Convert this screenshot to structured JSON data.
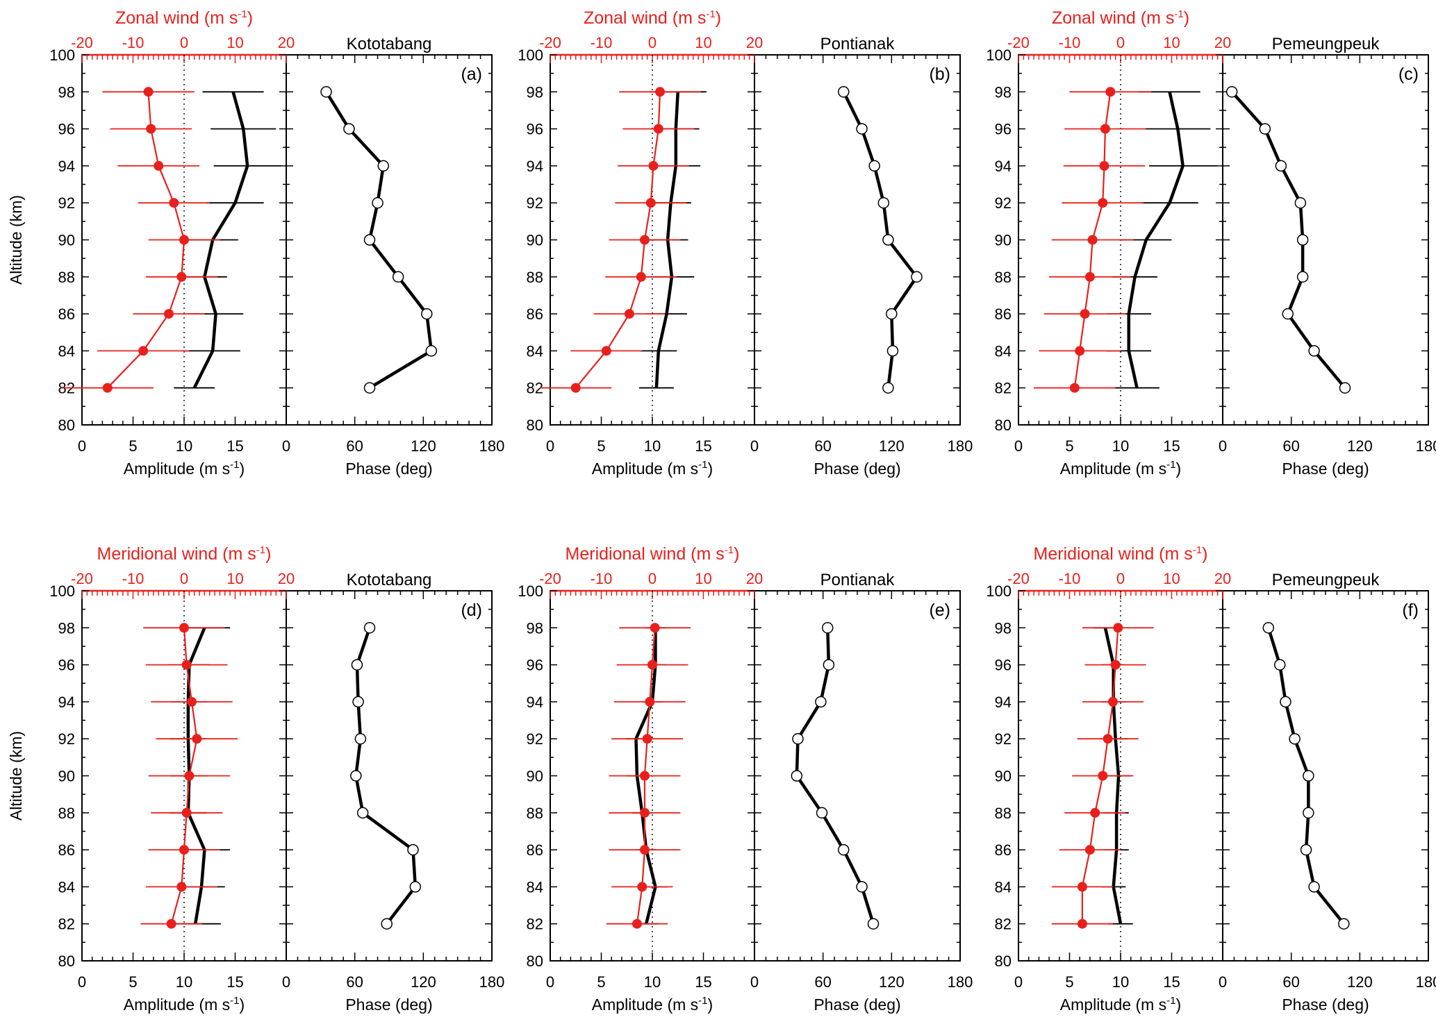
{
  "figure": {
    "y_axis_label": "Altitude (km)",
    "amplitude_axis_label": "Amplitude (m s",
    "phase_axis_label": "Phase (deg)",
    "zonal_axis_label": "Zonal wind (m s",
    "meridional_axis_label": "Meridional wind (m s",
    "unit_superscript": "-1",
    "unit_close": ")",
    "stations": [
      "Kototabang",
      "Pontianak",
      "Pemeungpeuk"
    ],
    "altitude_ticks": [
      "80",
      "82",
      "84",
      "86",
      "88",
      "90",
      "92",
      "94",
      "96",
      "98",
      "100"
    ],
    "amplitude_ticks": [
      "0",
      "5",
      "10",
      "15"
    ],
    "phase_ticks": [
      "0",
      "60",
      "120",
      "180"
    ],
    "wind_ticks": [
      "-20",
      "-10",
      "0",
      "10",
      "20"
    ],
    "colors": {
      "wind": "#e8201c",
      "amplitude": "#000000",
      "phase": "#000000"
    }
  },
  "chart_data": [
    {
      "type": "line",
      "panel": "a",
      "panel_label": "(a)",
      "component": "zonal",
      "station": "Kototabang",
      "altitude_km": [
        98,
        96,
        94,
        92,
        90,
        88,
        86,
        84,
        82
      ],
      "amplitude_ylim": [
        80,
        100
      ],
      "amplitude_xlim": [
        0,
        20
      ],
      "amplitude": [
        14.8,
        15.8,
        16.2,
        15.0,
        12.8,
        12.0,
        13.1,
        12.8,
        11.0
      ],
      "amplitude_err": [
        3.0,
        3.2,
        3.3,
        2.8,
        2.5,
        2.2,
        2.7,
        2.7,
        2.0
      ],
      "phase_xlim": [
        0,
        180
      ],
      "phase": [
        35,
        55,
        85,
        80,
        73,
        98,
        123,
        127,
        73
      ],
      "wind_xlim": [
        -20,
        20
      ],
      "mean_wind": [
        -7,
        -6.5,
        -5,
        -2,
        0,
        -0.5,
        -3,
        -8,
        -15
      ],
      "wind_err": [
        9,
        8,
        8,
        7,
        7,
        7,
        7,
        9,
        9
      ]
    },
    {
      "type": "line",
      "panel": "b",
      "panel_label": "(b)",
      "component": "zonal",
      "station": "Pontianak",
      "altitude_km": [
        98,
        96,
        94,
        92,
        90,
        88,
        86,
        84,
        82
      ],
      "amplitude_ylim": [
        80,
        100
      ],
      "amplitude_xlim": [
        0,
        20
      ],
      "amplitude": [
        12.5,
        12.3,
        12.3,
        11.8,
        11.5,
        11.9,
        11.4,
        10.6,
        10.4
      ],
      "amplitude_err": [
        2.8,
        2.3,
        2.4,
        2.0,
        2.0,
        2.2,
        2.0,
        1.8,
        1.7
      ],
      "phase_xlim": [
        0,
        180
      ],
      "phase": [
        78,
        94,
        105,
        113,
        117,
        142,
        120,
        121,
        117
      ],
      "wind_xlim": [
        -20,
        20
      ],
      "mean_wind": [
        1.5,
        1.2,
        0.2,
        -0.3,
        -1.5,
        -2.2,
        -4.5,
        -9,
        -15
      ],
      "wind_err": [
        8,
        7,
        7,
        7,
        7,
        7,
        7,
        7,
        7
      ]
    },
    {
      "type": "line",
      "panel": "c",
      "panel_label": "(c)",
      "component": "zonal",
      "station": "Pemeungpeuk",
      "altitude_km": [
        98,
        96,
        94,
        92,
        90,
        88,
        86,
        84,
        82
      ],
      "amplitude_ylim": [
        80,
        100
      ],
      "amplitude_xlim": [
        0,
        20
      ],
      "amplitude": [
        14.8,
        15.6,
        16.1,
        14.8,
        12.5,
        11.4,
        10.8,
        10.8,
        11.6
      ],
      "amplitude_err": [
        3.0,
        3.2,
        3.3,
        2.8,
        2.5,
        2.2,
        2.2,
        2.2,
        2.2
      ],
      "phase_xlim": [
        0,
        180
      ],
      "phase": [
        8,
        37,
        51,
        68,
        70,
        70,
        57,
        80,
        107
      ],
      "wind_xlim": [
        -20,
        20
      ],
      "mean_wind": [
        -2,
        -3,
        -3.2,
        -3.5,
        -5.5,
        -6,
        -7,
        -8,
        -9
      ],
      "wind_err": [
        8,
        8,
        8,
        8,
        8,
        8,
        8,
        8,
        8
      ]
    },
    {
      "type": "line",
      "panel": "d",
      "panel_label": "(d)",
      "component": "meridional",
      "station": "Kototabang",
      "altitude_km": [
        98,
        96,
        94,
        92,
        90,
        88,
        86,
        84,
        82
      ],
      "amplitude_ylim": [
        80,
        100
      ],
      "amplitude_xlim": [
        0,
        20
      ],
      "amplitude": [
        12.0,
        10.5,
        10.4,
        10.4,
        10.5,
        10.4,
        12.0,
        11.7,
        11.1
      ],
      "amplitude_err": [
        2.5,
        2.0,
        1.8,
        1.8,
        1.8,
        1.8,
        2.5,
        2.3,
        2.5
      ],
      "phase_xlim": [
        0,
        180
      ],
      "phase": [
        73,
        62,
        63,
        65,
        61,
        67,
        111,
        113,
        88
      ],
      "wind_xlim": [
        -20,
        20
      ],
      "mean_wind": [
        0,
        0.5,
        1.5,
        2.5,
        1,
        0.5,
        0,
        -0.5,
        -2.5
      ],
      "wind_err": [
        8,
        8,
        8,
        8,
        8,
        7,
        7,
        7,
        6
      ]
    },
    {
      "type": "line",
      "panel": "e",
      "panel_label": "(e)",
      "component": "meridional",
      "station": "Pontianak",
      "altitude_km": [
        98,
        96,
        94,
        92,
        90,
        88,
        86,
        84,
        82
      ],
      "amplitude_ylim": [
        80,
        100
      ],
      "amplitude_xlim": [
        0,
        20
      ],
      "amplitude": [
        10.3,
        10.3,
        10.0,
        8.4,
        8.5,
        9.0,
        9.4,
        10.3,
        9.4
      ],
      "amplitude_err": [
        1.0,
        1.0,
        1.0,
        1.0,
        1.0,
        1.0,
        1.0,
        1.2,
        1.2
      ],
      "phase_xlim": [
        0,
        180
      ],
      "phase": [
        64,
        65,
        58,
        38,
        37,
        59,
        78,
        94,
        104
      ],
      "wind_xlim": [
        -20,
        20
      ],
      "mean_wind": [
        0.5,
        0,
        -0.5,
        -1,
        -1.5,
        -1.5,
        -1.5,
        -2,
        -3
      ],
      "wind_err": [
        7,
        7,
        7,
        7,
        7,
        7,
        7,
        6,
        6
      ]
    },
    {
      "type": "line",
      "panel": "f",
      "panel_label": "(f)",
      "component": "meridional",
      "station": "Pemeungpeuk",
      "altitude_km": [
        98,
        96,
        94,
        92,
        90,
        88,
        86,
        84,
        82
      ],
      "amplitude_ylim": [
        80,
        100
      ],
      "amplitude_xlim": [
        0,
        20
      ],
      "amplitude": [
        8.5,
        9.3,
        9.3,
        9.5,
        9.8,
        9.6,
        9.6,
        9.3,
        10.0
      ],
      "amplitude_err": [
        1.2,
        1.2,
        1.2,
        1.2,
        1.2,
        1.2,
        1.2,
        1.2,
        1.2
      ],
      "phase_xlim": [
        0,
        180
      ],
      "phase": [
        40,
        50,
        55,
        63,
        75,
        75,
        73,
        80,
        106
      ],
      "wind_xlim": [
        -20,
        20
      ],
      "mean_wind": [
        -0.5,
        -1,
        -1.5,
        -2.5,
        -3.5,
        -5,
        -6,
        -7.5,
        -7.5
      ],
      "wind_err": [
        7,
        6,
        6,
        6,
        6,
        6,
        6,
        6,
        6
      ]
    }
  ]
}
